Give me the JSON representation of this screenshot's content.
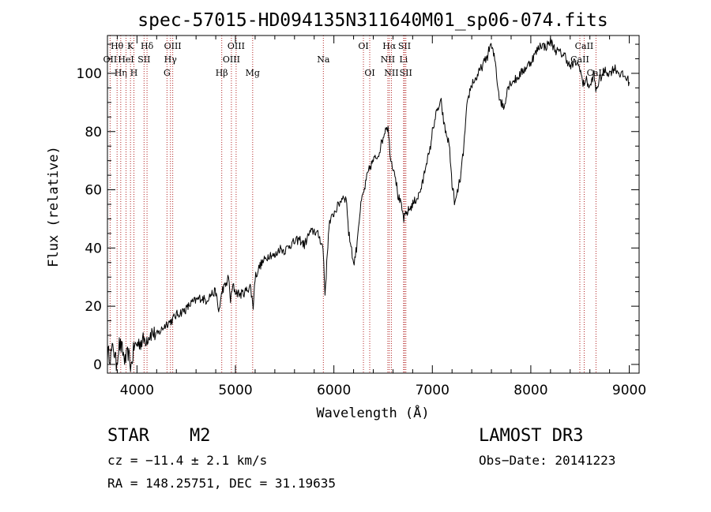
{
  "chart_data": {
    "type": "line",
    "title": "spec-57015-HD094135N311640M01_sp06-074.fits",
    "xlabel": "Wavelength (Å)",
    "ylabel": "Flux (relative)",
    "xlim": [
      3700,
      9100
    ],
    "ylim": [
      -3,
      113
    ],
    "x_ticks": [
      4000,
      5000,
      6000,
      7000,
      8000,
      9000
    ],
    "y_ticks": [
      0,
      20,
      40,
      60,
      80,
      100
    ],
    "grid": false,
    "line_color": "#000000",
    "marker_color": "#b22222",
    "series": [
      {
        "name": "spectrum",
        "x": [
          3700,
          3730,
          3760,
          3790,
          3820,
          3850,
          3880,
          3910,
          3940,
          3970,
          4000,
          4050,
          4100,
          4150,
          4200,
          4250,
          4300,
          4350,
          4400,
          4450,
          4500,
          4550,
          4600,
          4650,
          4700,
          4750,
          4800,
          4830,
          4870,
          4900,
          4930,
          4950,
          4975,
          5000,
          5050,
          5100,
          5150,
          5180,
          5200,
          5250,
          5300,
          5350,
          5400,
          5450,
          5500,
          5550,
          5600,
          5650,
          5700,
          5750,
          5800,
          5850,
          5890,
          5910,
          5950,
          6000,
          6050,
          6080,
          6100,
          6130,
          6150,
          6180,
          6200,
          6230,
          6250,
          6280,
          6310,
          6340,
          6370,
          6400,
          6450,
          6500,
          6530,
          6550,
          6563,
          6580,
          6600,
          6620,
          6650,
          6680,
          6710,
          6740,
          6780,
          6820,
          6860,
          6900,
          6940,
          6970,
          7000,
          7030,
          7060,
          7090,
          7120,
          7150,
          7170,
          7200,
          7230,
          7260,
          7290,
          7320,
          7350,
          7380,
          7410,
          7440,
          7470,
          7500,
          7530,
          7560,
          7590,
          7610,
          7640,
          7660,
          7680,
          7700,
          7730,
          7760,
          7800,
          7850,
          7900,
          7950,
          8000,
          8050,
          8100,
          8150,
          8200,
          8250,
          8300,
          8350,
          8400,
          8450,
          8500,
          8530,
          8560,
          8600,
          8640,
          8660,
          8700,
          8750,
          8800,
          8850,
          8900,
          8950,
          8980,
          9000
        ],
        "values": [
          4,
          3,
          6,
          0,
          7,
          5,
          1,
          4,
          -1,
          6,
          7,
          8,
          9,
          11,
          10,
          12,
          14,
          15,
          17,
          18,
          19,
          21,
          22,
          23,
          22,
          24,
          25,
          18,
          26,
          27,
          30,
          22,
          27,
          25,
          24,
          25,
          27,
          20,
          30,
          34,
          36,
          38,
          37,
          40,
          39,
          41,
          42,
          43,
          41,
          45,
          46,
          44,
          40,
          24,
          48,
          52,
          55,
          57,
          58,
          56,
          45,
          40,
          34,
          40,
          48,
          56,
          60,
          65,
          68,
          70,
          72,
          78,
          82,
          81,
          76,
          70,
          68,
          66,
          58,
          55,
          50,
          52,
          54,
          56,
          58,
          62,
          70,
          72,
          80,
          85,
          88,
          90,
          82,
          78,
          76,
          62,
          55,
          60,
          65,
          75,
          88,
          94,
          97,
          98,
          100,
          102,
          104,
          106,
          110,
          108,
          104,
          97,
          92,
          90,
          88,
          95,
          97,
          98,
          100,
          102,
          104,
          107,
          110,
          109,
          111,
          108,
          107,
          106,
          102,
          104,
          102,
          96,
          98,
          95,
          100,
          94,
          98,
          101,
          100,
          102,
          100,
          99,
          98,
          97
        ]
      }
    ],
    "markers": [
      {
        "label": "Hθ",
        "x": 3798,
        "row": 0
      },
      {
        "label": "OII",
        "x": 3727,
        "row": 1
      },
      {
        "label": "Hη",
        "x": 3835,
        "row": 2
      },
      {
        "label": "HeI",
        "x": 3889,
        "row": 1
      },
      {
        "label": "K",
        "x": 3934,
        "row": 0
      },
      {
        "label": "SII",
        "x": 4072,
        "row": 1
      },
      {
        "label": "H",
        "x": 3969,
        "row": 2
      },
      {
        "label": "Hδ",
        "x": 4102,
        "row": 0
      },
      {
        "label": "OIII",
        "x": 4363,
        "row": 0
      },
      {
        "label": "Hγ",
        "x": 4340,
        "row": 1
      },
      {
        "label": "G",
        "x": 4305,
        "row": 2
      },
      {
        "label": "Hβ",
        "x": 4861,
        "row": 2
      },
      {
        "label": "OIII",
        "x": 5007,
        "row": 0
      },
      {
        "label": "OIII",
        "x": 4959,
        "row": 1
      },
      {
        "label": "Mg",
        "x": 5175,
        "row": 2
      },
      {
        "label": "Na",
        "x": 5893,
        "row": 1
      },
      {
        "label": "OI",
        "x": 6300,
        "row": 0
      },
      {
        "label": "OI",
        "x": 6364,
        "row": 2
      },
      {
        "label": "Hα",
        "x": 6563,
        "row": 0
      },
      {
        "label": "NII",
        "x": 6548,
        "row": 1
      },
      {
        "label": "NII",
        "x": 6584,
        "row": 2
      },
      {
        "label": "SII",
        "x": 6717,
        "row": 0
      },
      {
        "label": "Li",
        "x": 6708,
        "row": 1
      },
      {
        "label": "SII",
        "x": 6731,
        "row": 2
      },
      {
        "label": "CaII",
        "x": 8542,
        "row": 0
      },
      {
        "label": "CaII",
        "x": 8498,
        "row": 1
      },
      {
        "label": "CaII",
        "x": 8662,
        "row": 2
      }
    ]
  },
  "info": {
    "object_class": "STAR",
    "subclass": "M2",
    "survey": "LAMOST DR3",
    "cz": "cz = −11.4 ± 2.1 km/s",
    "obs_date": "Obs−Date: 20141223",
    "coords": "RA = 148.25751, DEC =  31.19635"
  }
}
